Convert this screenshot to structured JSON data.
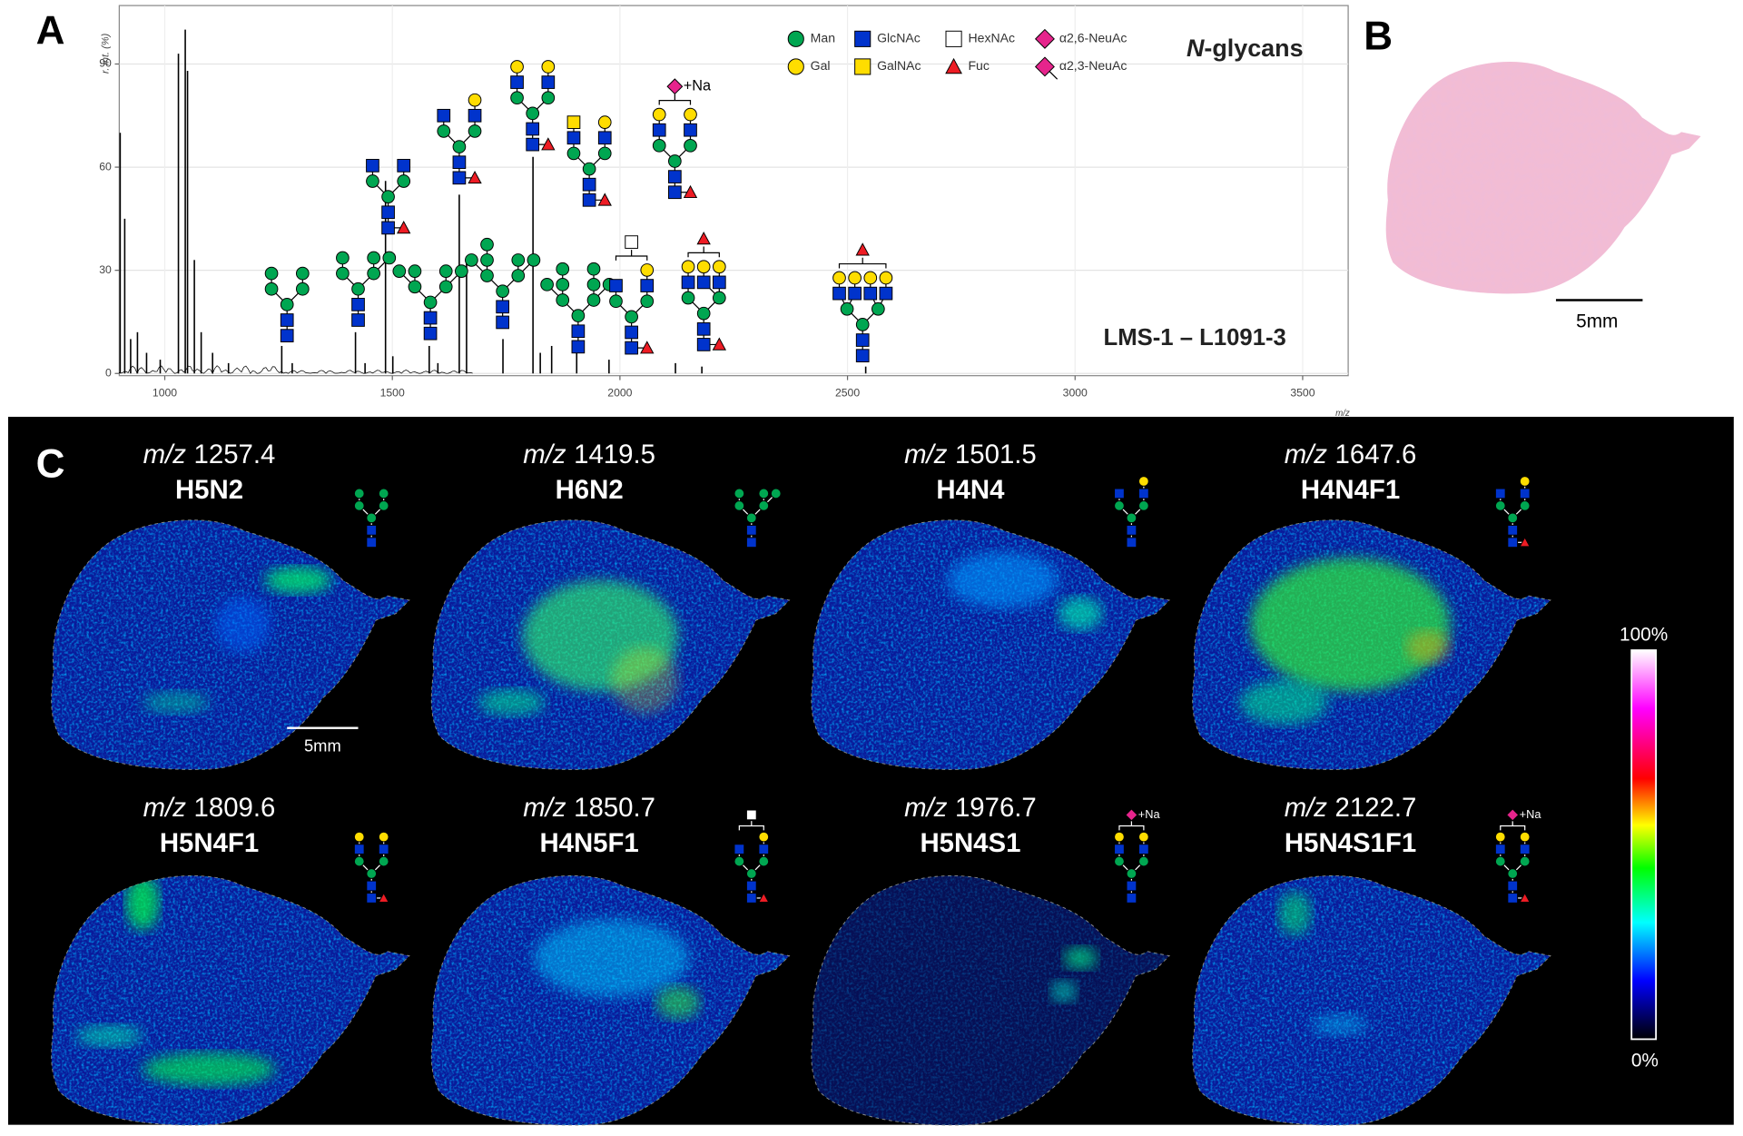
{
  "panel_labels": [
    "A",
    "B",
    "C"
  ],
  "chart_data": {
    "type": "stem",
    "ylabel": "r. int. (%)",
    "xlabel": "m/z",
    "xlim": [
      900,
      3600
    ],
    "ylim": [
      0,
      107
    ],
    "xticks": [
      1000,
      1500,
      2000,
      2500,
      3000,
      3500
    ],
    "yticks": [
      0,
      30,
      60,
      90
    ],
    "grid": true,
    "color": "#000000",
    "x": [
      902,
      912,
      925,
      940,
      960,
      990,
      1030,
      1045,
      1050,
      1065,
      1080,
      1105,
      1140,
      1257,
      1280,
      1419,
      1440,
      1485,
      1501,
      1581,
      1600,
      1647,
      1663,
      1743,
      1809,
      1825,
      1850,
      1905,
      1976,
      2122,
      2180,
      2540
    ],
    "values": [
      70,
      45,
      10,
      12,
      6,
      4,
      93,
      100,
      88,
      33,
      12,
      6,
      3,
      8,
      3,
      12,
      3,
      56,
      5,
      8,
      3,
      52,
      33,
      10,
      63,
      6,
      8,
      6,
      4,
      3,
      2,
      2
    ]
  },
  "glycan_class_prefix": "N",
  "glycan_class": "-glycans",
  "symbols": [
    "Man",
    "GlcNAc",
    "HexNAc",
    "α2,6-NeuAc",
    "Gal",
    "GalNAc",
    "Fuc",
    "α2,3-NeuAc"
  ],
  "sample": "LMS-1 – L1091-3",
  "adduct": "+Na",
  "scale_bar": "5mm",
  "mz_label": "m/z",
  "ion_images": [
    {
      "mz": 1257.4,
      "composition": "H5N2"
    },
    {
      "mz": 1419.5,
      "composition": "H6N2"
    },
    {
      "mz": 1501.5,
      "composition": "H4N4"
    },
    {
      "mz": 1647.6,
      "composition": "H4N4F1"
    },
    {
      "mz": 1809.6,
      "composition": "H5N4F1"
    },
    {
      "mz": 1850.7,
      "composition": "H4N5F1"
    },
    {
      "mz": 1976.7,
      "composition": "H5N4S1"
    },
    {
      "mz": 2122.7,
      "composition": "H5N4S1F1"
    }
  ],
  "colorbar": {
    "max": "100%",
    "min": "0%"
  }
}
